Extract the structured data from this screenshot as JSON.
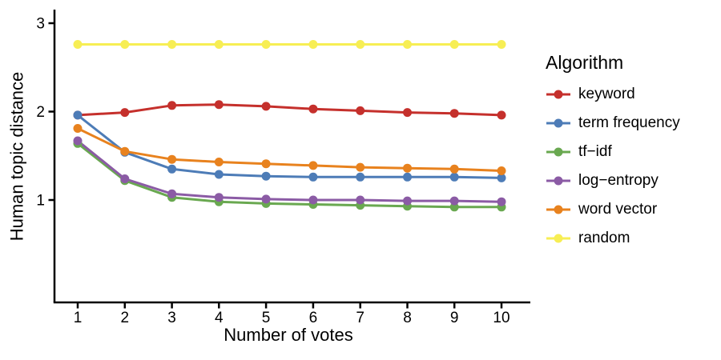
{
  "chart_data": {
    "type": "line",
    "title": "",
    "xlabel": "Number of votes",
    "ylabel": "Human topic distance",
    "legend_title": "Algorithm",
    "legend_position": "right",
    "grid": false,
    "marker": "circle",
    "x": [
      1,
      2,
      3,
      4,
      5,
      6,
      7,
      8,
      9,
      10
    ],
    "x_ticks": [
      1,
      2,
      3,
      4,
      5,
      6,
      7,
      8,
      9,
      10
    ],
    "y_ticks": [
      1,
      2,
      3
    ],
    "xlim": [
      0.5,
      10.6
    ],
    "ylim": [
      -0.16,
      3.15
    ],
    "axis_color": "#000000",
    "series": [
      {
        "id": "keyword",
        "name": "keyword",
        "color": "#c5302c",
        "values": [
          1.96,
          1.99,
          2.07,
          2.08,
          2.06,
          2.03,
          2.01,
          1.99,
          1.98,
          1.96
        ]
      },
      {
        "id": "term-frequency",
        "name": "term frequency",
        "color": "#4d7cb7",
        "values": [
          1.96,
          1.54,
          1.35,
          1.29,
          1.27,
          1.26,
          1.26,
          1.26,
          1.26,
          1.25
        ]
      },
      {
        "id": "tf-idf",
        "name": "tf−idf",
        "color": "#69a850",
        "values": [
          1.64,
          1.22,
          1.03,
          0.98,
          0.96,
          0.95,
          0.94,
          0.93,
          0.92,
          0.92
        ]
      },
      {
        "id": "log-entropy",
        "name": "log−entropy",
        "color": "#8b5ba5",
        "values": [
          1.67,
          1.24,
          1.07,
          1.03,
          1.01,
          1.0,
          1.0,
          0.99,
          0.99,
          0.98
        ]
      },
      {
        "id": "word-vector",
        "name": "word vector",
        "color": "#e8821e",
        "values": [
          1.81,
          1.55,
          1.46,
          1.43,
          1.41,
          1.39,
          1.37,
          1.36,
          1.35,
          1.33
        ]
      },
      {
        "id": "random",
        "name": "random",
        "color": "#f7ee54",
        "values": [
          2.76,
          2.76,
          2.76,
          2.76,
          2.76,
          2.76,
          2.76,
          2.76,
          2.76,
          2.76
        ]
      }
    ]
  }
}
